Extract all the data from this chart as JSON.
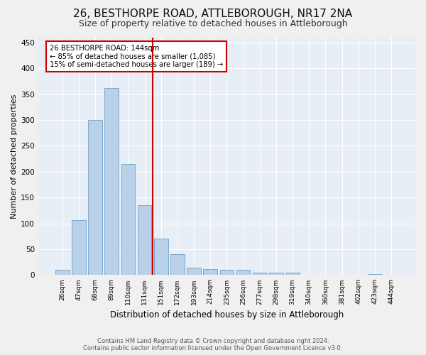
{
  "title": "26, BESTHORPE ROAD, ATTLEBOROUGH, NR17 2NA",
  "subtitle": "Size of property relative to detached houses in Attleborough",
  "xlabel": "Distribution of detached houses by size in Attleborough",
  "ylabel": "Number of detached properties",
  "footer_line1": "Contains HM Land Registry data © Crown copyright and database right 2024.",
  "footer_line2": "Contains public sector information licensed under the Open Government Licence v3.0.",
  "categories": [
    "26sqm",
    "47sqm",
    "68sqm",
    "89sqm",
    "110sqm",
    "131sqm",
    "151sqm",
    "172sqm",
    "193sqm",
    "214sqm",
    "235sqm",
    "256sqm",
    "277sqm",
    "298sqm",
    "319sqm",
    "340sqm",
    "360sqm",
    "381sqm",
    "402sqm",
    "423sqm",
    "444sqm"
  ],
  "values": [
    10,
    107,
    300,
    362,
    215,
    135,
    70,
    40,
    15,
    12,
    10,
    10,
    5,
    5,
    5,
    0,
    0,
    0,
    0,
    2,
    1
  ],
  "bar_color": "#b8d0e8",
  "bar_edge_color": "#6fa0c8",
  "vline_x": 5.5,
  "vline_color": "#cc0000",
  "annotation_line1": "26 BESTHORPE ROAD: 144sqm",
  "annotation_line2": "← 85% of detached houses are smaller (1,085)",
  "annotation_line3": "15% of semi-detached houses are larger (189) →",
  "annotation_box_color": "#cc0000",
  "ylim": [
    0,
    460
  ],
  "yticks": [
    0,
    50,
    100,
    150,
    200,
    250,
    300,
    350,
    400,
    450
  ],
  "fig_bg_color": "#f0f0f0",
  "plot_bg_color": "#e8eef5",
  "title_fontsize": 11,
  "subtitle_fontsize": 9,
  "xlabel_fontsize": 8.5,
  "ylabel_fontsize": 8
}
